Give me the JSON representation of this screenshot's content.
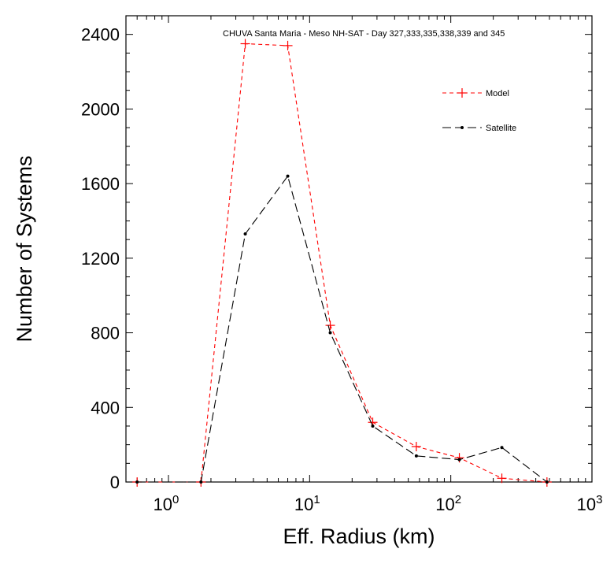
{
  "chart_data": {
    "type": "line",
    "title": "CHUVA Santa Maria - Meso NH-SAT - Day 327,333,335,338,339 and 345",
    "xlabel": "Eff. Radius (km)",
    "ylabel": "Number of Systems",
    "xscale": "log",
    "xlim": [
      0.5,
      1000
    ],
    "ylim": [
      0,
      2500
    ],
    "x_ticks": [
      {
        "value": 1,
        "base": "10",
        "exp": "0"
      },
      {
        "value": 10,
        "base": "10",
        "exp": "1"
      },
      {
        "value": 100,
        "base": "10",
        "exp": "2"
      },
      {
        "value": 1000,
        "base": "10",
        "exp": "3"
      }
    ],
    "y_ticks": [
      "0",
      "400",
      "800",
      "1200",
      "1600",
      "2000",
      "2400"
    ],
    "grid": false,
    "legend_position": "upper-right",
    "series": [
      {
        "name": "Model",
        "color": "#ff0000",
        "dash": "dashed",
        "marker": "plus",
        "x": [
          0.6,
          1.7,
          3.5,
          7,
          14,
          28,
          57,
          115,
          230,
          480
        ],
        "y": [
          0,
          0,
          2350,
          2340,
          840,
          320,
          190,
          130,
          20,
          0
        ]
      },
      {
        "name": "Satellite",
        "color": "#000000",
        "dash": "long-dashed",
        "marker": "dot",
        "x": [
          0.6,
          1.7,
          3.5,
          7,
          14,
          28,
          57,
          115,
          230,
          480
        ],
        "y": [
          0,
          0,
          1330,
          1640,
          800,
          300,
          140,
          120,
          185,
          0
        ]
      }
    ]
  }
}
